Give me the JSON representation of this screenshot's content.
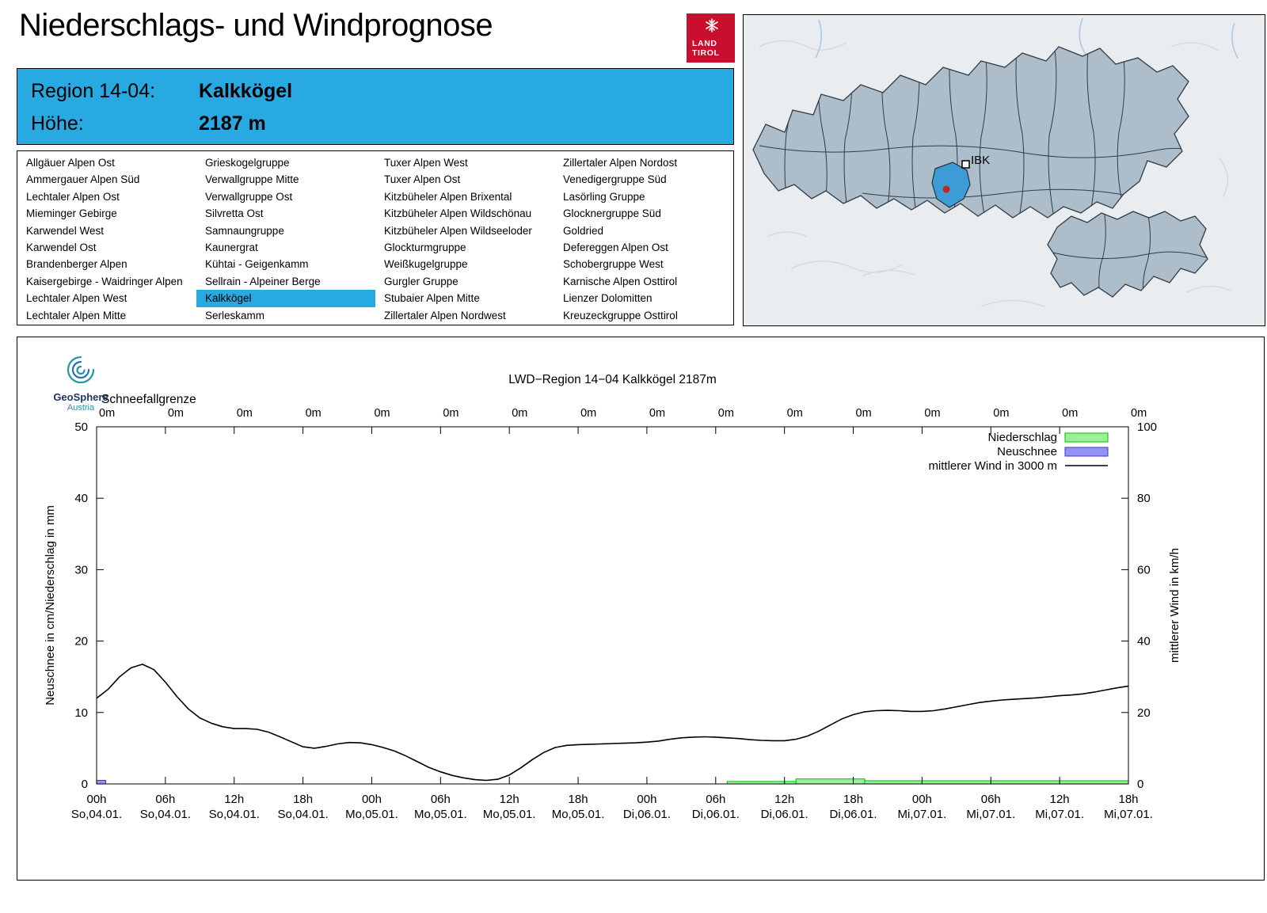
{
  "page": {
    "title": "Niederschlags- und Windprognose"
  },
  "logo": {
    "line1": "LAND",
    "line2": "TIROL"
  },
  "banner": {
    "region_label": "Region 14-04:",
    "region_value": "Kalkkögel",
    "hoehe_label": "Höhe:",
    "hoehe_value": "2187 m"
  },
  "map": {
    "city_label": "IBK"
  },
  "region_list": {
    "selected": "Kalkkögel",
    "columns": [
      [
        "Allgäuer Alpen Ost",
        "Ammergauer Alpen Süd",
        "Lechtaler Alpen Ost",
        "Mieminger Gebirge",
        "Karwendel West",
        "Karwendel Ost",
        "Brandenberger Alpen",
        "Kaisergebirge - Waidringer Alpen",
        "Lechtaler Alpen West",
        "Lechtaler Alpen Mitte"
      ],
      [
        "Grieskogelgruppe",
        "Verwallgruppe Mitte",
        "Verwallgruppe Ost",
        "Silvretta Ost",
        "Samnaungruppe",
        "Kaunergrat",
        "Kühtai - Geigenkamm",
        "Sellrain - Alpeiner Berge",
        "Kalkkögel",
        "Serleskamm"
      ],
      [
        "Tuxer Alpen West",
        "Tuxer Alpen Ost",
        "Kitzbüheler Alpen Brixental",
        "Kitzbüheler Alpen Wildschönau",
        "Kitzbüheler Alpen Wildseeloder",
        "Glockturmgruppe",
        "Weißkugelgruppe",
        "Gurgler Gruppe",
        "Stubaier Alpen Mitte",
        "Zillertaler Alpen Nordwest"
      ],
      [
        "Zillertaler Alpen Nordost",
        "Venedigergruppe Süd",
        "Lasörling Gruppe",
        "Glocknergruppe Süd",
        "Goldried",
        "Defereggen Alpen Ost",
        "Schobergruppe West",
        "Karnische Alpen Osttirol",
        "Lienzer Dolomitten",
        "Kreuzeckgruppe Osttirol"
      ]
    ]
  },
  "geosphere": {
    "name": "GeoSphere",
    "country": "Austria"
  },
  "chart_data": {
    "type": "line",
    "title": "LWD−Region 14−04 Kalkkögel 2187m",
    "snowline_label": "Schneefallgrenze",
    "snowline_values": [
      "0m",
      "0m",
      "0m",
      "0m",
      "0m",
      "0m",
      "0m",
      "0m",
      "0m",
      "0m",
      "0m",
      "0m",
      "0m",
      "0m",
      "0m",
      "0m"
    ],
    "ylabel_left": "Neuschnee in cm/Niederschlag in mm",
    "ylabel_right": "mittlerer Wind in km/h",
    "y_left": {
      "min": 0,
      "max": 50,
      "step": 10
    },
    "y_right": {
      "min": 0,
      "max": 100,
      "step": 20
    },
    "x_hours": {
      "min": 0,
      "max": 90,
      "step": 6
    },
    "x_ticks": [
      {
        "hour": "00h",
        "date": "So,04.01."
      },
      {
        "hour": "06h",
        "date": "So,04.01."
      },
      {
        "hour": "12h",
        "date": "So,04.01."
      },
      {
        "hour": "18h",
        "date": "So,04.01."
      },
      {
        "hour": "00h",
        "date": "Mo,05.01."
      },
      {
        "hour": "06h",
        "date": "Mo,05.01."
      },
      {
        "hour": "12h",
        "date": "Mo,05.01."
      },
      {
        "hour": "18h",
        "date": "Mo,05.01."
      },
      {
        "hour": "00h",
        "date": "Di,06.01."
      },
      {
        "hour": "06h",
        "date": "Di,06.01."
      },
      {
        "hour": "12h",
        "date": "Di,06.01."
      },
      {
        "hour": "18h",
        "date": "Di,06.01."
      },
      {
        "hour": "00h",
        "date": "Mi,07.01."
      },
      {
        "hour": "06h",
        "date": "Mi,07.01."
      },
      {
        "hour": "12h",
        "date": "Mi,07.01."
      },
      {
        "hour": "18h",
        "date": "Mi,07.01."
      }
    ],
    "legend": [
      {
        "label": "Niederschlag",
        "type": "box",
        "fill": "#9bf09b",
        "stroke": "#00c000"
      },
      {
        "label": "Neuschnee",
        "type": "box",
        "fill": "#9393f5",
        "stroke": "#3a3ac8"
      },
      {
        "label": "mittlerer Wind in 3000 m",
        "type": "line",
        "stroke": "#000000"
      }
    ],
    "series": {
      "wind_kmh": [
        [
          0,
          24
        ],
        [
          1,
          26.5
        ],
        [
          2,
          30
        ],
        [
          3,
          32.5
        ],
        [
          4,
          33.5
        ],
        [
          5,
          32
        ],
        [
          6,
          28.5
        ],
        [
          7,
          24.5
        ],
        [
          8,
          21
        ],
        [
          9,
          18.5
        ],
        [
          10,
          17
        ],
        [
          11,
          16
        ],
        [
          12,
          15.5
        ],
        [
          13,
          15.5
        ],
        [
          14,
          15.3
        ],
        [
          15,
          14.5
        ],
        [
          16,
          13.2
        ],
        [
          17,
          11.8
        ],
        [
          18,
          10.4
        ],
        [
          19,
          10
        ],
        [
          20,
          10.5
        ],
        [
          21,
          11.2
        ],
        [
          22,
          11.6
        ],
        [
          23,
          11.5
        ],
        [
          24,
          11
        ],
        [
          25,
          10.2
        ],
        [
          26,
          9.2
        ],
        [
          27,
          7.8
        ],
        [
          28,
          6.2
        ],
        [
          29,
          4.6
        ],
        [
          30,
          3.4
        ],
        [
          31,
          2.4
        ],
        [
          32,
          1.7
        ],
        [
          33,
          1.2
        ],
        [
          34,
          1
        ],
        [
          35,
          1.3
        ],
        [
          36,
          2.5
        ],
        [
          37,
          4.5
        ],
        [
          38,
          6.8
        ],
        [
          39,
          8.8
        ],
        [
          40,
          10.2
        ],
        [
          41,
          10.8
        ],
        [
          42,
          11
        ],
        [
          43,
          11.1
        ],
        [
          44,
          11.2
        ],
        [
          45,
          11.3
        ],
        [
          46,
          11.4
        ],
        [
          47,
          11.5
        ],
        [
          48,
          11.7
        ],
        [
          49,
          12
        ],
        [
          50,
          12.5
        ],
        [
          51,
          12.9
        ],
        [
          52,
          13.1
        ],
        [
          53,
          13.2
        ],
        [
          54,
          13.1
        ],
        [
          55,
          12.9
        ],
        [
          56,
          12.7
        ],
        [
          57,
          12.4
        ],
        [
          58,
          12.2
        ],
        [
          59,
          12.1
        ],
        [
          60,
          12.1
        ],
        [
          61,
          12.5
        ],
        [
          62,
          13.4
        ],
        [
          63,
          14.8
        ],
        [
          64,
          16.5
        ],
        [
          65,
          18.2
        ],
        [
          66,
          19.4
        ],
        [
          67,
          20.2
        ],
        [
          68,
          20.5
        ],
        [
          69,
          20.6
        ],
        [
          70,
          20.5
        ],
        [
          71,
          20.3
        ],
        [
          72,
          20.3
        ],
        [
          73,
          20.5
        ],
        [
          74,
          21
        ],
        [
          75,
          21.6
        ],
        [
          76,
          22.2
        ],
        [
          77,
          22.8
        ],
        [
          78,
          23.2
        ],
        [
          79,
          23.5
        ],
        [
          80,
          23.7
        ],
        [
          81,
          23.9
        ],
        [
          82,
          24.1
        ],
        [
          83,
          24.4
        ],
        [
          84,
          24.7
        ],
        [
          85,
          24.9
        ],
        [
          86,
          25.2
        ],
        [
          87,
          25.7
        ],
        [
          88,
          26.3
        ],
        [
          89,
          26.9
        ],
        [
          90,
          27.4
        ]
      ],
      "niederschlag_mm": [
        {
          "t0": 55,
          "t1": 61,
          "v": 0.35
        },
        {
          "t0": 61,
          "t1": 67,
          "v": 0.7
        },
        {
          "t0": 67,
          "t1": 90,
          "v": 0.45
        }
      ],
      "neuschnee_cm": [
        {
          "t0": 0,
          "t1": 0.8,
          "v": 0.5
        }
      ]
    }
  }
}
